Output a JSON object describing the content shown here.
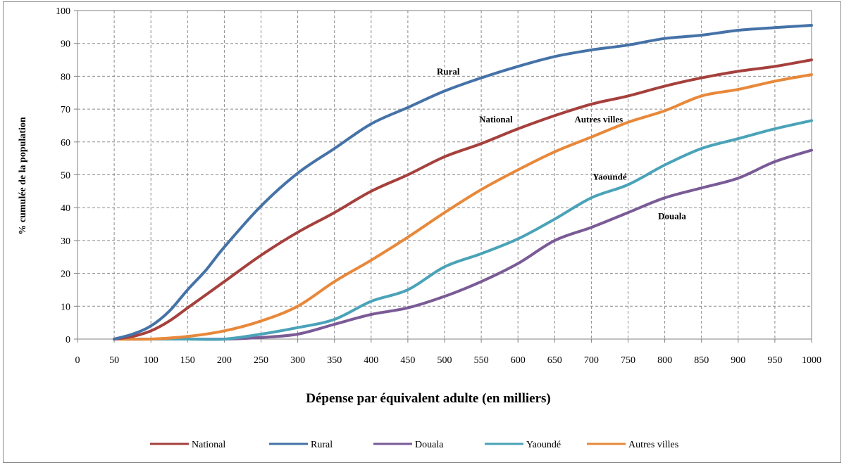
{
  "chart_data": {
    "type": "line",
    "title": "",
    "xlabel": "Dépense par équivalent adulte (en  milliers)",
    "ylabel": "% cumulée de la population",
    "xlim": [
      0,
      1000
    ],
    "ylim": [
      0,
      100
    ],
    "x_ticks": [
      "0",
      "50",
      "100",
      "150",
      "200",
      "250",
      "300",
      "350",
      "400",
      "450",
      "500",
      "550",
      "600",
      "650",
      "700",
      "750",
      "800",
      "850",
      "900",
      "950",
      "1000"
    ],
    "y_ticks": [
      "0",
      "10",
      "20",
      "30",
      "40",
      "50",
      "60",
      "70",
      "80",
      "90",
      "100"
    ],
    "grid": true,
    "legend_position": "bottom",
    "series": [
      {
        "name": "National",
        "color": "#a5403c",
        "x": [
          50,
          75,
          100,
          125,
          150,
          175,
          200,
          250,
          300,
          350,
          400,
          450,
          500,
          550,
          600,
          650,
          700,
          750,
          800,
          850,
          900,
          950,
          1000
        ],
        "y": [
          0,
          0.8,
          2.5,
          5.5,
          9.5,
          13.5,
          17.5,
          25.5,
          32.5,
          38.5,
          45,
          50,
          55.5,
          59.5,
          64,
          68,
          71.5,
          74,
          77,
          79.5,
          81.5,
          83,
          85
        ]
      },
      {
        "name": "Rural",
        "color": "#4572a7",
        "x": [
          50,
          75,
          100,
          125,
          150,
          175,
          200,
          250,
          300,
          350,
          400,
          450,
          500,
          550,
          600,
          650,
          700,
          750,
          800,
          850,
          900,
          950,
          1000
        ],
        "y": [
          0,
          1.5,
          4,
          8.5,
          15,
          21,
          28,
          40.5,
          50.5,
          58,
          65.5,
          70.5,
          75.5,
          79.5,
          83,
          86,
          88,
          89.5,
          91.5,
          92.5,
          94,
          94.8,
          95.5
        ]
      },
      {
        "name": "Douala",
        "color": "#7a5b96",
        "x": [
          50,
          100,
          150,
          200,
          250,
          300,
          350,
          400,
          450,
          500,
          550,
          600,
          650,
          700,
          750,
          800,
          850,
          900,
          950,
          1000
        ],
        "y": [
          0,
          0,
          0,
          0,
          0.5,
          1.5,
          4.5,
          7.5,
          9.5,
          13,
          17.5,
          23,
          30,
          34,
          38.5,
          43,
          46,
          49,
          54,
          57.5
        ]
      },
      {
        "name": "Yaoundé",
        "color": "#4aa3b8",
        "x": [
          50,
          100,
          150,
          200,
          250,
          300,
          350,
          400,
          450,
          500,
          550,
          600,
          650,
          700,
          750,
          800,
          850,
          900,
          950,
          1000
        ],
        "y": [
          0,
          0,
          0,
          0,
          1.5,
          3.5,
          6,
          11.5,
          15,
          22,
          26,
          30.5,
          36.5,
          43,
          47,
          53,
          58,
          61,
          64,
          66.5
        ]
      },
      {
        "name": "Autres villes",
        "color": "#e8883a",
        "x": [
          50,
          100,
          150,
          200,
          250,
          300,
          350,
          400,
          450,
          500,
          550,
          600,
          650,
          700,
          750,
          800,
          850,
          900,
          950,
          1000
        ],
        "y": [
          0,
          0,
          0.8,
          2.5,
          5.5,
          10,
          17.5,
          24,
          31,
          38.5,
          45.5,
          51.5,
          57,
          61.5,
          66,
          69.5,
          74,
          76,
          78.5,
          80.5
        ]
      }
    ],
    "annotations": [
      {
        "text": "Rural",
        "x": 505,
        "y": 80.5
      },
      {
        "text": "National",
        "x": 570,
        "y": 66
      },
      {
        "text": "Autres villes",
        "x": 710,
        "y": 66
      },
      {
        "text": "Yaoundé",
        "x": 725,
        "y": 48.5
      },
      {
        "text": "Douala",
        "x": 810,
        "y": 36.5
      }
    ]
  }
}
